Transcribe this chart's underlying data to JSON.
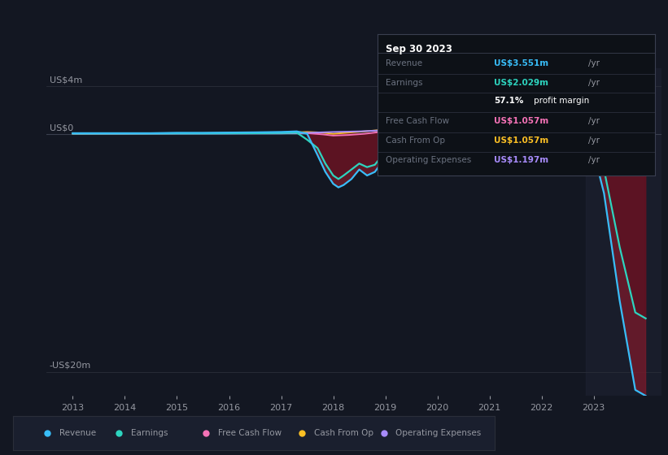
{
  "bg_color": "#131722",
  "chart_bg": "#131722",
  "ylim": [
    -22,
    5.5
  ],
  "xlim": [
    2012.5,
    2024.3
  ],
  "x_ticks": [
    2013,
    2014,
    2015,
    2016,
    2017,
    2018,
    2019,
    2020,
    2021,
    2022,
    2023
  ],
  "grid_color": "#2a2e39",
  "zero_line_color": "#ffffff",
  "y_label_top": "US$4m",
  "y_label_zero": "US$0",
  "y_label_bottom": "-US$20m",
  "info_box": {
    "title": "Sep 30 2023",
    "title_color": "#ffffff",
    "bg": "#0d1117",
    "border": "#3a3f50",
    "rows": [
      {
        "label": "Revenue",
        "label_color": "#6b7280",
        "value": "US$3.551m",
        "value_color": "#38bdf8"
      },
      {
        "label": "Earnings",
        "label_color": "#6b7280",
        "value": "US$2.029m",
        "value_color": "#2dd4bf"
      },
      {
        "label": "",
        "label_color": "#6b7280",
        "value": "57.1% profit margin",
        "value_color": "#ffffff",
        "bold": "57.1%"
      },
      {
        "label": "Free Cash Flow",
        "label_color": "#6b7280",
        "value": "US$1.057m",
        "value_color": "#f472b6"
      },
      {
        "label": "Cash From Op",
        "label_color": "#6b7280",
        "value": "US$1.057m",
        "value_color": "#fbbf24"
      },
      {
        "label": "Operating Expenses",
        "label_color": "#6b7280",
        "value": "US$1.197m",
        "value_color": "#a78bfa"
      }
    ]
  },
  "series": {
    "revenue": {
      "color": "#38bdf8",
      "lw": 1.6,
      "x": [
        2013.0,
        2013.25,
        2013.5,
        2013.75,
        2014.0,
        2014.5,
        2015.0,
        2015.5,
        2016.0,
        2016.5,
        2017.0,
        2017.3,
        2017.5,
        2017.7,
        2017.85,
        2018.0,
        2018.1,
        2018.2,
        2018.35,
        2018.5,
        2018.65,
        2018.8,
        2019.0,
        2019.2,
        2019.4,
        2019.6,
        2019.8,
        2020.0,
        2020.2,
        2020.5,
        2020.8,
        2021.0,
        2021.2,
        2021.4,
        2021.6,
        2021.8,
        2022.0,
        2022.2,
        2022.4,
        2022.6,
        2022.75,
        2022.85,
        2023.0,
        2023.2,
        2023.5,
        2023.8,
        2024.0
      ],
      "y": [
        0.05,
        0.05,
        0.05,
        0.05,
        0.05,
        0.05,
        0.08,
        0.08,
        0.1,
        0.12,
        0.15,
        0.2,
        0.0,
        -1.8,
        -3.2,
        -4.2,
        -4.5,
        -4.3,
        -3.8,
        -3.0,
        -3.5,
        -3.2,
        -2.0,
        0.5,
        2.0,
        2.8,
        3.2,
        3.5,
        3.8,
        3.5,
        3.0,
        2.8,
        3.2,
        3.6,
        3.4,
        2.8,
        2.5,
        2.0,
        1.0,
        0.0,
        -0.5,
        -1.0,
        -1.5,
        -5.0,
        -14.0,
        -21.5,
        -22.0
      ]
    },
    "earnings": {
      "color": "#2dd4bf",
      "lw": 1.6,
      "x": [
        2013.0,
        2013.25,
        2013.5,
        2013.75,
        2014.0,
        2014.5,
        2015.0,
        2015.5,
        2016.0,
        2016.5,
        2017.0,
        2017.3,
        2017.5,
        2017.7,
        2017.85,
        2018.0,
        2018.1,
        2018.2,
        2018.35,
        2018.5,
        2018.65,
        2018.8,
        2019.0,
        2019.2,
        2019.4,
        2019.6,
        2019.8,
        2020.0,
        2020.2,
        2020.5,
        2020.8,
        2021.0,
        2021.2,
        2021.4,
        2021.6,
        2021.8,
        2022.0,
        2022.2,
        2022.4,
        2022.6,
        2022.75,
        2022.85,
        2023.0,
        2023.2,
        2023.5,
        2023.8,
        2024.0
      ],
      "y": [
        0.02,
        0.02,
        0.02,
        0.02,
        0.02,
        0.02,
        0.03,
        0.03,
        0.04,
        0.05,
        0.07,
        0.1,
        -0.5,
        -1.2,
        -2.5,
        -3.5,
        -3.8,
        -3.5,
        -3.0,
        -2.5,
        -2.8,
        -2.6,
        -1.5,
        0.3,
        1.5,
        2.0,
        2.5,
        2.8,
        3.2,
        2.9,
        2.5,
        2.3,
        2.7,
        3.0,
        2.8,
        2.3,
        2.0,
        1.6,
        0.7,
        -0.1,
        -0.4,
        -0.7,
        -1.0,
        -3.0,
        -9.5,
        -15.0,
        -15.5
      ]
    },
    "free_cash_flow": {
      "color": "#f472b6",
      "lw": 1.4,
      "x": [
        2013.0,
        2014.0,
        2015.0,
        2016.0,
        2017.0,
        2017.5,
        2017.8,
        2018.0,
        2018.3,
        2018.6,
        2019.0,
        2019.5,
        2020.0,
        2020.5,
        2021.0,
        2021.5,
        2022.0,
        2022.3,
        2022.5,
        2022.7,
        2022.9,
        2023.0,
        2023.3,
        2023.6,
        2024.0
      ],
      "y": [
        0.02,
        0.02,
        0.03,
        0.04,
        0.05,
        0.05,
        -0.05,
        -0.15,
        -0.1,
        0.0,
        0.2,
        0.15,
        0.1,
        0.15,
        0.3,
        0.35,
        0.2,
        0.15,
        0.1,
        0.05,
        0.0,
        0.05,
        0.3,
        0.8,
        1.0
      ]
    },
    "cash_from_op": {
      "color": "#fbbf24",
      "lw": 1.4,
      "x": [
        2013.0,
        2014.0,
        2015.0,
        2016.0,
        2016.5,
        2017.0,
        2017.3,
        2017.5,
        2017.8,
        2018.0,
        2018.3,
        2018.6,
        2019.0,
        2019.5,
        2020.0,
        2020.5,
        2021.0,
        2021.3,
        2021.6,
        2022.0,
        2022.3,
        2022.6,
        2022.9,
        2023.0,
        2023.3,
        2023.6,
        2024.0
      ],
      "y": [
        0.02,
        0.03,
        0.04,
        0.06,
        0.07,
        0.1,
        0.12,
        0.15,
        0.1,
        0.0,
        0.1,
        0.2,
        0.35,
        0.3,
        0.4,
        0.45,
        0.55,
        0.6,
        0.55,
        0.5,
        0.45,
        0.4,
        0.35,
        0.3,
        0.5,
        0.9,
        1.1
      ]
    },
    "operating_expenses": {
      "color": "#a78bfa",
      "lw": 1.4,
      "x": [
        2013.0,
        2014.0,
        2015.0,
        2016.0,
        2017.0,
        2017.5,
        2018.0,
        2018.5,
        2019.0,
        2019.5,
        2020.0,
        2020.5,
        2021.0,
        2021.5,
        2022.0,
        2022.5,
        2022.9,
        2023.0,
        2023.3,
        2023.6,
        2024.0
      ],
      "y": [
        0.01,
        0.01,
        0.02,
        0.02,
        0.03,
        0.08,
        0.15,
        0.2,
        0.3,
        0.25,
        0.2,
        0.25,
        0.3,
        0.35,
        0.3,
        0.3,
        0.4,
        0.5,
        0.7,
        1.0,
        1.2
      ]
    }
  },
  "legend": [
    {
      "label": "Revenue",
      "color": "#38bdf8"
    },
    {
      "label": "Earnings",
      "color": "#2dd4bf"
    },
    {
      "label": "Free Cash Flow",
      "color": "#f472b6"
    },
    {
      "label": "Cash From Op",
      "color": "#fbbf24"
    },
    {
      "label": "Operating Expenses",
      "color": "#a78bfa"
    }
  ]
}
